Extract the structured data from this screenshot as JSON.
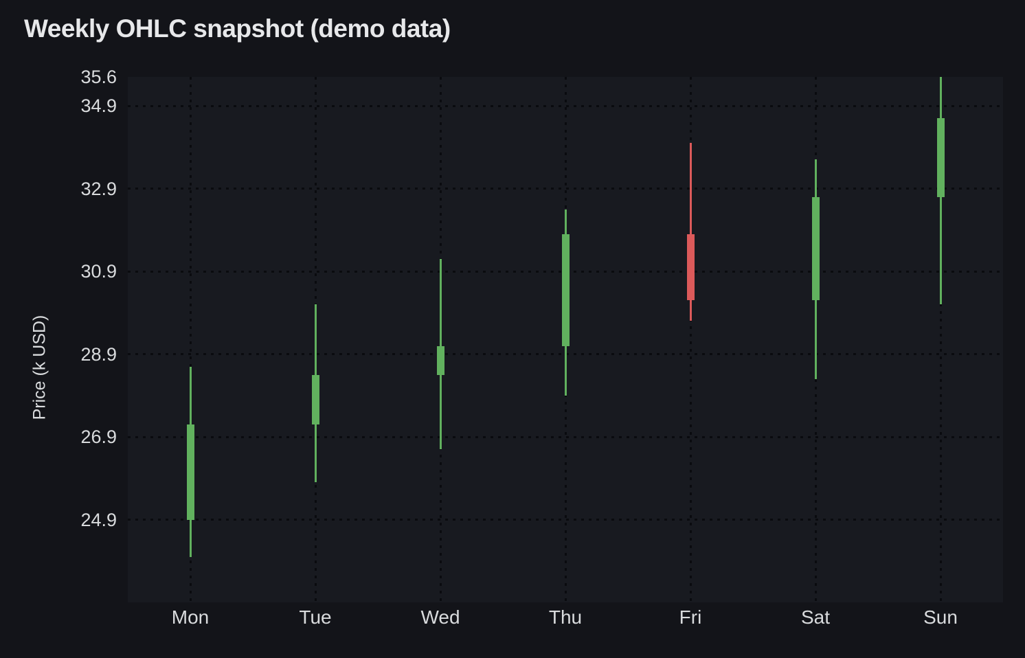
{
  "title": "Weekly OHLC snapshot (demo data)",
  "colors": {
    "background": "#131419",
    "panel_background": "#181A20",
    "grid": "#0A0B0F",
    "text": "#D9DBDD",
    "title_text": "#E7E8EA",
    "up": "#61B15E",
    "down": "#DC5A5A"
  },
  "chart_data": {
    "type": "candlestick",
    "title": "Weekly OHLC snapshot (demo data)",
    "xlabel": "",
    "ylabel": "Price (k USD)",
    "categories": [
      "Mon",
      "Tue",
      "Wed",
      "Thu",
      "Fri",
      "Sat",
      "Sun"
    ],
    "open": [
      24.9,
      27.2,
      28.4,
      29.1,
      31.8,
      30.2,
      32.7
    ],
    "high": [
      28.6,
      30.1,
      31.2,
      32.4,
      34.0,
      33.6,
      35.6
    ],
    "low": [
      24.0,
      25.8,
      26.6,
      27.9,
      29.7,
      28.3,
      30.1
    ],
    "close": [
      27.2,
      28.4,
      29.1,
      31.8,
      30.2,
      32.7,
      34.6
    ],
    "up_days": [
      "Mon",
      "Tue",
      "Wed",
      "Thu",
      "Sat",
      "Sun"
    ],
    "down_days": [
      "Fri"
    ],
    "yticks": [
      35.6,
      34.9,
      32.9,
      30.9,
      28.9,
      26.9,
      24.9
    ],
    "ylim": [
      22.9,
      35.6
    ],
    "grid": "dotted, horizontal at each y tick and vertical at each category",
    "legend": "none",
    "up_color": "#61B15E",
    "down_color": "#DC5A5A"
  }
}
